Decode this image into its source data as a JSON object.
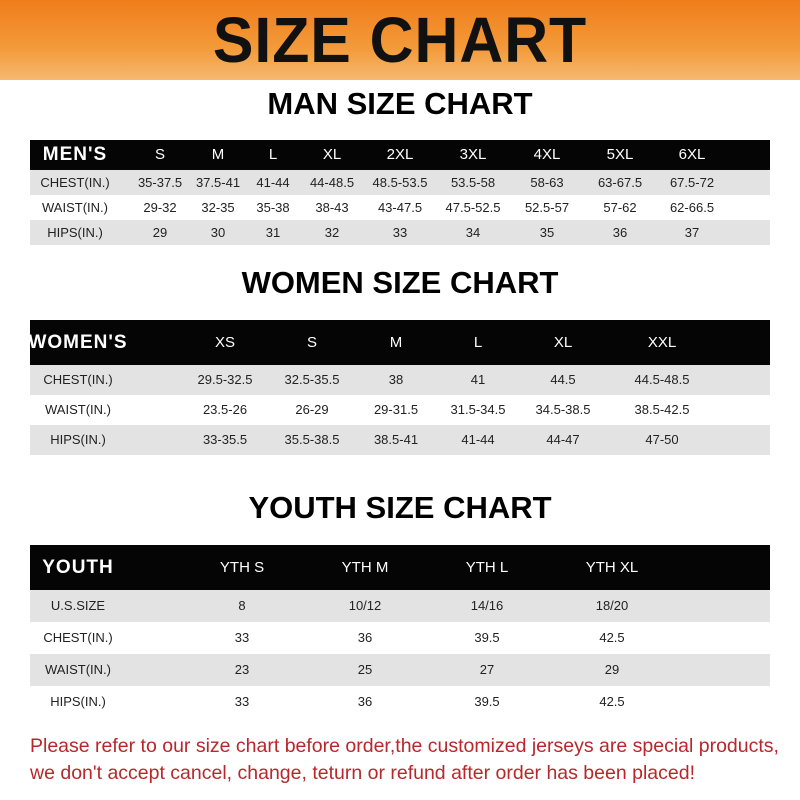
{
  "banner_title": "SIZE CHART",
  "colors": {
    "banner": "#f07d1a",
    "header_row": "#050505",
    "stripe": "#e3e3e3",
    "notice": "#b8282a"
  },
  "men": {
    "title": "MAN SIZE CHART",
    "header": [
      "MEN'S",
      "S",
      "M",
      "L",
      "XL",
      "2XL",
      "3XL",
      "4XL",
      "5XL",
      "6XL"
    ],
    "rows": [
      [
        "CHEST(IN.)",
        "35-37.5",
        "37.5-41",
        "41-44",
        "44-48.5",
        "48.5-53.5",
        "53.5-58",
        "58-63",
        "63-67.5",
        "67.5-72"
      ],
      [
        "WAIST(IN.)",
        "29-32",
        "32-35",
        "35-38",
        "38-43",
        "43-47.5",
        "47.5-52.5",
        "52.5-57",
        "57-62",
        "62-66.5"
      ],
      [
        "HIPS(IN.)",
        "29",
        "30",
        "31",
        "32",
        "33",
        "34",
        "35",
        "36",
        "37"
      ]
    ]
  },
  "women": {
    "title": "WOMEN SIZE CHART",
    "header": [
      "WOMEN'S",
      "XS",
      "S",
      "M",
      "L",
      "XL",
      "XXL"
    ],
    "rows": [
      [
        "CHEST(IN.)",
        "29.5-32.5",
        "32.5-35.5",
        "38",
        "41",
        "44.5",
        "44.5-48.5"
      ],
      [
        "WAIST(IN.)",
        "23.5-26",
        "26-29",
        "29-31.5",
        "31.5-34.5",
        "34.5-38.5",
        "38.5-42.5"
      ],
      [
        "HIPS(IN.)",
        "33-35.5",
        "35.5-38.5",
        "38.5-41",
        "41-44",
        "44-47",
        "47-50"
      ]
    ]
  },
  "youth": {
    "title": "YOUTH SIZE CHART",
    "header": [
      "YOUTH",
      "YTH S",
      "YTH M",
      "YTH L",
      "YTH XL"
    ],
    "rows": [
      [
        "U.S.SIZE",
        "8",
        "10/12",
        "14/16",
        "18/20"
      ],
      [
        "CHEST(IN.)",
        "33",
        "36",
        "39.5",
        "42.5"
      ],
      [
        "WAIST(IN.)",
        "23",
        "25",
        "27",
        "29"
      ],
      [
        "HIPS(IN.)",
        "33",
        "36",
        "39.5",
        "42.5"
      ]
    ]
  },
  "notice": {
    "line1": "Please refer to our size chart before order,the customized jerseys are special products,",
    "line2": "we don't accept cancel, change, teturn or refund after order has been placed!"
  }
}
